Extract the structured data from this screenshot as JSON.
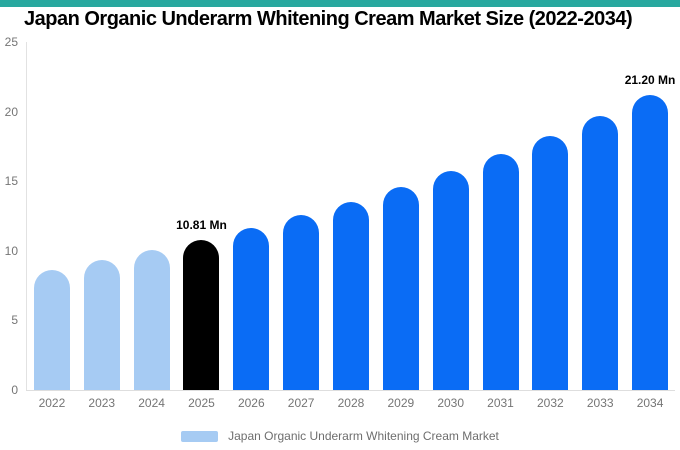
{
  "header": {
    "title": "Japan Organic Underarm Whitening Cream Market Size (2022-2034)"
  },
  "chart_data": {
    "type": "bar",
    "title": "Japan Organic Underarm Whitening Cream Market Size (2022-2034)",
    "categories": [
      "2022",
      "2023",
      "2024",
      "2025",
      "2026",
      "2027",
      "2028",
      "2029",
      "2030",
      "2031",
      "2032",
      "2033",
      "2034"
    ],
    "values": [
      8.64,
      9.31,
      10.03,
      10.81,
      11.65,
      12.55,
      13.53,
      14.58,
      15.71,
      16.93,
      18.25,
      19.67,
      21.2
    ],
    "unit": "Mn",
    "ylim": [
      0,
      25
    ],
    "yticks": [
      25,
      20,
      15,
      10,
      5,
      0
    ],
    "grid": false,
    "bar_colors": [
      "#a6cbf3",
      "#a6cbf3",
      "#a6cbf3",
      "#000000",
      "#0a6cf5",
      "#0a6cf5",
      "#0a6cf5",
      "#0a6cf5",
      "#0a6cf5",
      "#0a6cf5",
      "#0a6cf5",
      "#0a6cf5",
      "#0a6cf5"
    ],
    "annotations": [
      {
        "category": "2025",
        "index": 3,
        "text": "10.81 Mn"
      },
      {
        "category": "2034",
        "index": 12,
        "text": "21.20 Mn"
      }
    ],
    "legend": {
      "position": "bottom",
      "label": "Japan Organic Underarm Whitening Cream Market",
      "swatch_color": "#a6cbf3"
    },
    "colors": {
      "historical": "#a6cbf3",
      "base_year": "#000000",
      "forecast": "#0a6cf5",
      "accent_bar": "#28a89f",
      "axis_line": "#e2e2e2",
      "tick_text": "#757575",
      "legend_text": "#6e6e6e",
      "value_label_text": "#000000"
    }
  }
}
